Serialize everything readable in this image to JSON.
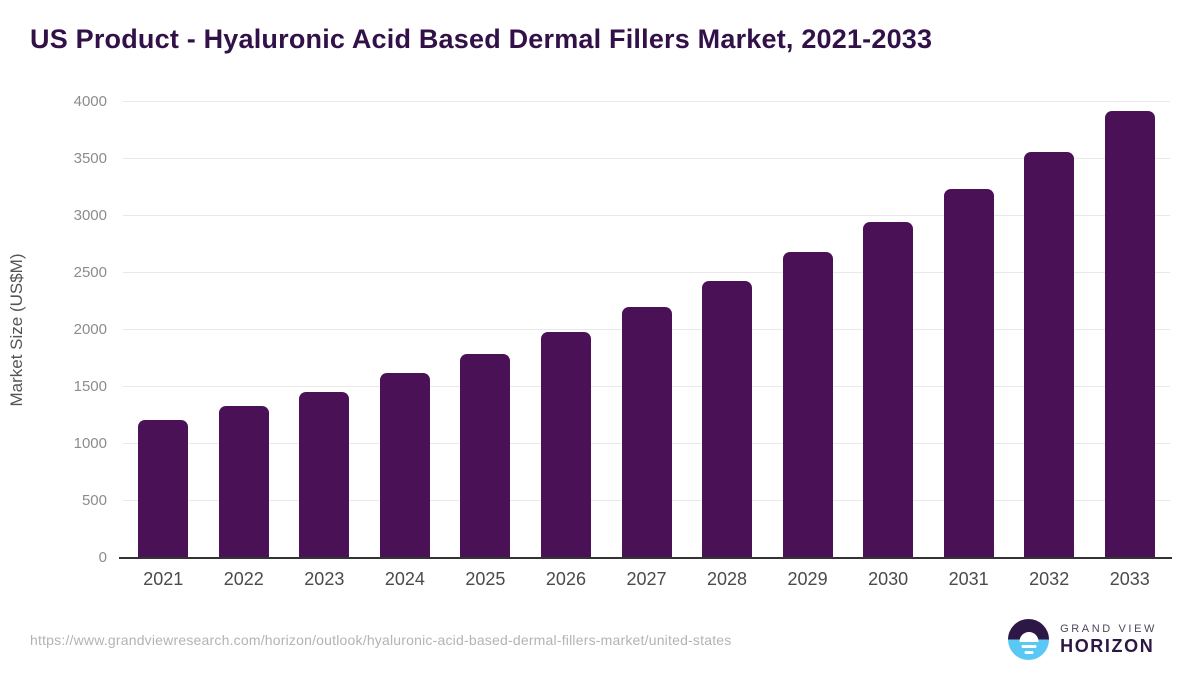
{
  "title": "US Product - Hyaluronic Acid Based Dermal Fillers Market, 2021-2033",
  "footer": {
    "source_url": "https://www.grandviewresearch.com/horizon/outlook/hyaluronic-acid-based-dermal-fillers-market/united-states",
    "logo": {
      "line1": "GRAND VIEW",
      "line2": "HORIZON"
    }
  },
  "colors": {
    "bar": "#4a1157",
    "title": "#321149",
    "gridline": "#e9e9e9",
    "axis_line": "#333333",
    "y_tick_text": "#8c8c8c",
    "x_tick_text": "#4a4a4a",
    "y_label_text": "#545454",
    "url_text": "#b3b3b3",
    "logo_dark_purple": "#2d1845",
    "logo_light_blue": "#5ac8f5",
    "logo_gray_text": "#4e4759"
  },
  "chart_data": {
    "type": "bar",
    "title": "US Product - Hyaluronic Acid Based Dermal Fillers Market, 2021-2033",
    "categories": [
      "2021",
      "2022",
      "2023",
      "2024",
      "2025",
      "2026",
      "2027",
      "2028",
      "2029",
      "2030",
      "2031",
      "2032",
      "2033"
    ],
    "values": [
      1215,
      1330,
      1460,
      1620,
      1790,
      1980,
      2200,
      2430,
      2680,
      2950,
      3240,
      3560,
      3925
    ],
    "xlabel": "",
    "ylabel": "Market Size (US$M)",
    "ylim": [
      0,
      4000
    ],
    "ytick_step": 500,
    "yticks": [
      0,
      500,
      1000,
      1500,
      2000,
      2500,
      3000,
      3500,
      4000
    ],
    "grid": true,
    "legend": "none",
    "bar_color": "#4a1157"
  }
}
